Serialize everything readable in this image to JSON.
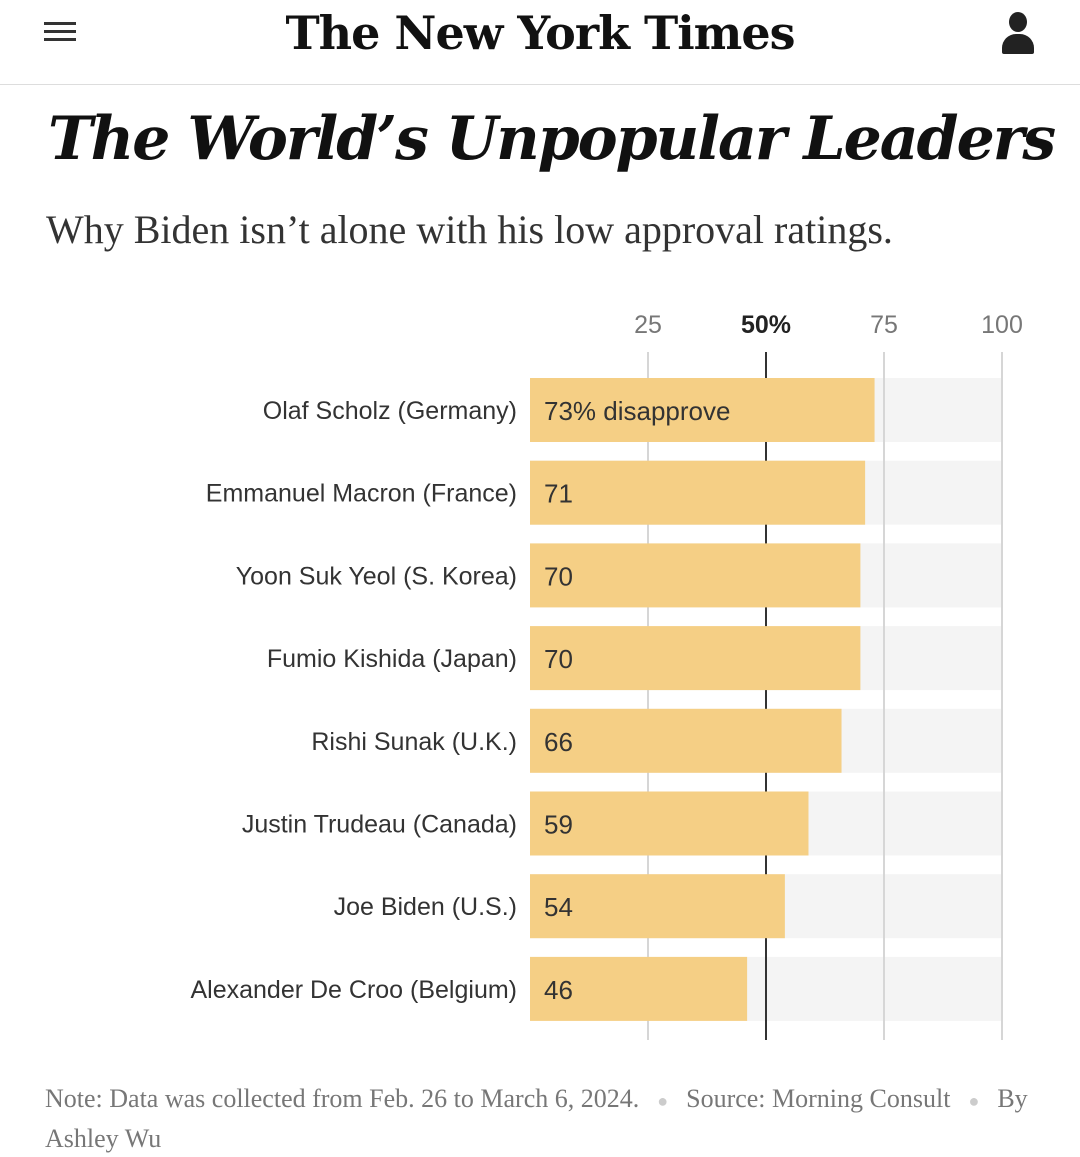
{
  "header": {
    "logo": "The New York Times",
    "menu_icon": "hamburger-menu-icon",
    "account_icon": "user-icon"
  },
  "article": {
    "title": "The World’s Unpopular Leaders",
    "subtitle": "Why Biden isn’t alone with his low approval ratings."
  },
  "chart_data": {
    "type": "bar",
    "orientation": "horizontal",
    "measure": "disapprove",
    "categories": [
      "Olaf Scholz (Germany)",
      "Emmanuel Macron (France)",
      "Yoon Suk Yeol (S. Korea)",
      "Fumio Kishida (Japan)",
      "Rishi Sunak (U.K.)",
      "Justin Trudeau (Canada)",
      "Joe Biden (U.S.)",
      "Alexander De Croo (Belgium)"
    ],
    "values": [
      73,
      71,
      70,
      70,
      66,
      59,
      54,
      46
    ],
    "value_labels": [
      "73% disapprove",
      "71",
      "70",
      "70",
      "66",
      "59",
      "54",
      "46"
    ],
    "xticks": [
      25,
      50,
      75,
      100
    ],
    "xtick_labels": [
      "25",
      "50%",
      "75",
      "100"
    ],
    "xlim": [
      0,
      100
    ],
    "reference_line": 50,
    "bar_color": "#f5cf85",
    "track_color": "#f4f4f4"
  },
  "footer": {
    "note": "Note: Data was collected from Feb. 26 to March 6, 2024.",
    "source": "Source: Morning Consult",
    "byline": "By Ashley Wu"
  }
}
